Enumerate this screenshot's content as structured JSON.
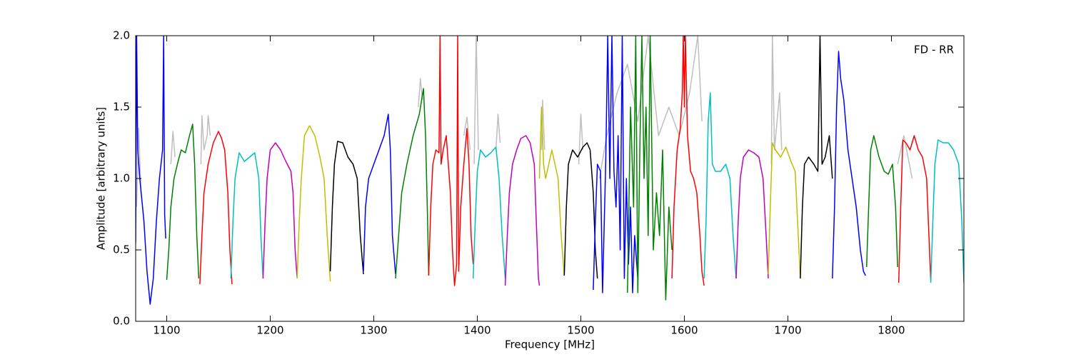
{
  "chart_data": {
    "type": "line",
    "annotation": "FD - RR",
    "xlabel": "Frequency [MHz]",
    "ylabel": "Amplitude [arbitrary units]",
    "xlim": [
      1070,
      1870
    ],
    "ylim": [
      0,
      2
    ],
    "xticks": [
      1100,
      1200,
      1300,
      1400,
      1500,
      1600,
      1700,
      1800
    ],
    "yticks": [
      {
        "value": 0,
        "label": "0.0"
      },
      0.5,
      {
        "value": 1,
        "label": "1.0"
      },
      1.5,
      {
        "value": 2,
        "label": "2.0"
      }
    ],
    "series": [
      {
        "color": "#bfbfbf",
        "x": [
          1071,
          1073,
          1075,
          null,
          1104,
          1106,
          1108,
          null,
          1133,
          1134,
          1136,
          1139,
          1140,
          1142,
          null,
          1343,
          1345,
          1347,
          null,
          1387,
          1390,
          1393,
          null,
          1397,
          1399,
          1401,
          null,
          1418,
          1420,
          1422,
          null,
          1462,
          1463,
          1465,
          null,
          1498,
          1500,
          1502,
          null,
          1518,
          1525,
          1535,
          1545,
          1555,
          1565,
          1575,
          1585,
          1595,
          1605,
          1613,
          1617,
          null,
          1684,
          1685,
          1687,
          1692,
          1694,
          null,
          1806,
          1812,
          1820
        ],
        "values": [
          0.8,
          1.35,
          0.9,
          null,
          1.1,
          1.33,
          1.15,
          null,
          1.1,
          1.44,
          1.2,
          1.3,
          1.44,
          1.3,
          null,
          1.5,
          1.7,
          1.55,
          null,
          1.3,
          1.43,
          1.2,
          null,
          1.1,
          2.0,
          1.2,
          null,
          1.2,
          1.45,
          1.25,
          null,
          1.2,
          1.55,
          1.2,
          null,
          1.1,
          1.45,
          1.2,
          null,
          1.0,
          1.3,
          1.6,
          1.8,
          1.4,
          2.0,
          1.3,
          1.5,
          1.3,
          1.6,
          2.0,
          1.4,
          null,
          1.1,
          2.0,
          1.2,
          1.6,
          1.2,
          null,
          1.1,
          1.3,
          1.0
        ]
      },
      {
        "color": "#0000ff",
        "x": [
          1070,
          1071,
          1072,
          1074,
          1078,
          1081,
          1084,
          1087,
          1090,
          1093,
          1096,
          1097,
          1098,
          1099
        ],
        "values": [
          0.55,
          2.0,
          1.2,
          1.0,
          0.7,
          0.35,
          0.12,
          0.3,
          0.7,
          1.0,
          1.2,
          2.0,
          0.75,
          0.58
        ]
      },
      {
        "color": "#008000",
        "x": [
          1100,
          1102,
          1104,
          1107,
          1111,
          1114,
          1118,
          1122,
          1125,
          1127,
          1129,
          1131
        ],
        "values": [
          0.29,
          0.5,
          0.8,
          1.0,
          1.12,
          1.2,
          1.18,
          1.3,
          1.38,
          1.1,
          0.6,
          0.3
        ]
      },
      {
        "color": "#ff0000",
        "x": [
          1132,
          1134,
          1136,
          1140,
          1145,
          1150,
          1153,
          1156,
          1159,
          1161,
          1163
        ],
        "values": [
          0.26,
          0.6,
          0.9,
          1.1,
          1.25,
          1.33,
          1.28,
          1.2,
          0.9,
          0.5,
          0.26
        ]
      },
      {
        "color": "#00bfbf",
        "x": [
          1162,
          1164,
          1166,
          1170,
          1175,
          1180,
          1185,
          1189,
          1191,
          1193
        ],
        "values": [
          0.3,
          0.7,
          1.0,
          1.18,
          1.12,
          1.15,
          1.18,
          1.0,
          0.6,
          0.3
        ]
      },
      {
        "color": "#bf00bf",
        "x": [
          1193,
          1195,
          1197,
          1200,
          1205,
          1210,
          1215,
          1220,
          1222,
          1224,
          1226
        ],
        "values": [
          0.3,
          0.7,
          1.0,
          1.2,
          1.25,
          1.2,
          1.12,
          1.05,
          0.9,
          0.5,
          0.3
        ]
      },
      {
        "color": "#bfbf00",
        "x": [
          1226,
          1228,
          1230,
          1233,
          1238,
          1243,
          1248,
          1252,
          1255,
          1258
        ],
        "values": [
          0.3,
          0.7,
          1.0,
          1.3,
          1.37,
          1.3,
          1.15,
          1.0,
          0.6,
          0.28
        ]
      },
      {
        "color": "#000000",
        "x": [
          1258,
          1260,
          1262,
          1265,
          1270,
          1275,
          1280,
          1284,
          1287,
          1290
        ],
        "values": [
          0.35,
          0.8,
          1.1,
          1.26,
          1.25,
          1.15,
          1.1,
          1.0,
          0.6,
          0.33
        ]
      },
      {
        "color": "#0000ff",
        "x": [
          1290,
          1292,
          1295,
          1300,
          1305,
          1310,
          1314,
          1316,
          1318,
          1321
        ],
        "values": [
          0.35,
          0.8,
          1.0,
          1.1,
          1.2,
          1.3,
          1.45,
          1.2,
          0.6,
          0.33
        ]
      },
      {
        "color": "#008000",
        "x": [
          1321,
          1324,
          1327,
          1332,
          1338,
          1344,
          1348,
          1350,
          1352,
          1353
        ],
        "values": [
          0.3,
          0.6,
          0.9,
          1.1,
          1.3,
          1.45,
          1.63,
          1.3,
          0.7,
          0.32
        ]
      },
      {
        "color": "#ff0000",
        "x": [
          1353,
          1355,
          1357,
          1360,
          1363,
          1364,
          1365,
          1367,
          1370,
          1374,
          1376,
          1378,
          1380,
          1381,
          1382,
          1384,
          1387,
          1390,
          1392,
          1394,
          1396
        ],
        "values": [
          0.32,
          0.8,
          1.1,
          1.2,
          1.18,
          2.0,
          1.1,
          1.2,
          1.3,
          0.9,
          0.5,
          0.25,
          0.4,
          2.0,
          0.35,
          0.8,
          1.1,
          1.35,
          1.1,
          0.6,
          0.4
        ]
      },
      {
        "color": "#00bfbf",
        "x": [
          1396,
          1398,
          1400,
          1403,
          1408,
          1413,
          1418,
          1421,
          1424,
          1427
        ],
        "values": [
          0.3,
          0.7,
          1.05,
          1.2,
          1.15,
          1.18,
          1.22,
          1.0,
          0.6,
          0.3
        ]
      },
      {
        "color": "#bf00bf",
        "x": [
          1427,
          1429,
          1431,
          1434,
          1438,
          1442,
          1447,
          1451,
          1455,
          1457,
          1459,
          1460
        ],
        "values": [
          0.25,
          0.6,
          0.9,
          1.1,
          1.2,
          1.28,
          1.3,
          1.25,
          1.1,
          0.7,
          0.3,
          0.25
        ]
      },
      {
        "color": "#bfbf00",
        "x": [
          1460,
          1462,
          1464,
          1466,
          1469,
          1472,
          1475,
          1478,
          1481,
          1484
        ],
        "values": [
          1.0,
          1.5,
          1.1,
          1.0,
          1.1,
          1.2,
          1.1,
          1.0,
          0.6,
          0.32
        ]
      },
      {
        "color": "#000000",
        "x": [
          1484,
          1486,
          1488,
          1492,
          1497,
          1502,
          1506,
          1509,
          1512,
          1514,
          1516
        ],
        "values": [
          0.32,
          0.8,
          1.1,
          1.2,
          1.15,
          1.22,
          1.25,
          1.2,
          0.9,
          0.5,
          0.3
        ]
      },
      {
        "color": "#0000ff",
        "x": [
          1512,
          1514,
          1516,
          1519,
          1521,
          1524,
          1526,
          1528,
          1530,
          1532,
          1534,
          1536,
          1538,
          1540,
          1542,
          1544,
          1546,
          1548,
          1550,
          1552,
          1555
        ],
        "values": [
          0.22,
          0.7,
          1.1,
          1.05,
          0.2,
          1.1,
          2.0,
          1.0,
          2.0,
          1.05,
          0.8,
          1.3,
          0.5,
          2.0,
          0.3,
          1.0,
          0.4,
          0.8,
          0.2,
          0.6,
          0.3
        ]
      },
      {
        "color": "#008000",
        "x": [
          1545,
          1548,
          1551,
          1553,
          1555,
          1557,
          1559,
          1561,
          1563,
          1565,
          1567,
          1570,
          1573,
          1576,
          1579,
          1582,
          1585,
          1588
        ],
        "values": [
          0.2,
          1.5,
          0.8,
          2.0,
          0.2,
          1.2,
          2.0,
          1.0,
          1.5,
          0.6,
          2.0,
          0.5,
          0.9,
          0.6,
          1.2,
          0.15,
          0.8,
          0.5
        ]
      },
      {
        "color": "#ff0000",
        "x": [
          1588,
          1590,
          1593,
          1596,
          1598,
          1599,
          1600,
          1601,
          1603,
          1606,
          1609,
          1612,
          1615,
          1617,
          1619
        ],
        "values": [
          0.3,
          0.8,
          1.2,
          1.35,
          1.6,
          2.0,
          1.5,
          2.0,
          1.3,
          1.05,
          1.0,
          0.9,
          0.6,
          0.35,
          0.25
        ]
      },
      {
        "color": "#00bfbf",
        "x": [
          1619,
          1621,
          1623,
          1625,
          1627,
          1630,
          1635,
          1640,
          1644,
          1647,
          1650
        ],
        "values": [
          0.3,
          0.7,
          1.4,
          1.6,
          1.1,
          1.05,
          1.05,
          1.1,
          1.0,
          0.6,
          0.3
        ]
      },
      {
        "color": "#bf00bf",
        "x": [
          1650,
          1652,
          1654,
          1657,
          1662,
          1667,
          1672,
          1676,
          1679,
          1681
        ],
        "values": [
          0.3,
          0.7,
          1.0,
          1.15,
          1.2,
          1.18,
          1.15,
          1.0,
          0.6,
          0.3
        ]
      },
      {
        "color": "#bfbf00",
        "x": [
          1681,
          1683,
          1685,
          1688,
          1693,
          1698,
          1703,
          1707,
          1710,
          1712
        ],
        "values": [
          0.33,
          0.8,
          1.25,
          1.2,
          1.15,
          1.22,
          1.12,
          1.05,
          0.6,
          0.3
        ]
      },
      {
        "color": "#000000",
        "x": [
          1712,
          1714,
          1716,
          1720,
          1725,
          1729,
          1731,
          1733,
          1736,
          1740,
          1743
        ],
        "values": [
          0.3,
          0.8,
          1.1,
          1.15,
          1.1,
          1.05,
          2.0,
          1.1,
          1.15,
          1.3,
          1.0
        ]
      },
      {
        "color": "#0000ff",
        "x": [
          1743,
          1745,
          1747,
          1749,
          1751,
          1754,
          1758,
          1762,
          1766,
          1770,
          1773,
          1775
        ],
        "values": [
          0.3,
          0.8,
          1.5,
          1.89,
          1.7,
          1.55,
          1.2,
          1.0,
          0.8,
          0.5,
          0.35,
          0.32
        ]
      },
      {
        "color": "#008000",
        "x": [
          1776,
          1778,
          1780,
          1783,
          1788,
          1793,
          1797,
          1801,
          1804,
          1806
        ],
        "values": [
          0.38,
          0.8,
          1.2,
          1.3,
          1.15,
          1.05,
          1.03,
          1.1,
          0.8,
          0.38
        ]
      },
      {
        "color": "#ff0000",
        "x": [
          1807,
          1809,
          1811,
          1814,
          1818,
          1822,
          1826,
          1830,
          1834,
          1838
        ],
        "values": [
          0.27,
          0.8,
          1.27,
          1.25,
          1.2,
          1.3,
          1.2,
          1.15,
          1.0,
          0.28
        ]
      },
      {
        "color": "#00bfbf",
        "x": [
          1838,
          1840,
          1842,
          1845,
          1850,
          1855,
          1860,
          1865,
          1868,
          1870
        ],
        "values": [
          0.27,
          0.7,
          1.1,
          1.27,
          1.25,
          1.25,
          1.2,
          1.1,
          0.7,
          0.27
        ]
      }
    ]
  }
}
